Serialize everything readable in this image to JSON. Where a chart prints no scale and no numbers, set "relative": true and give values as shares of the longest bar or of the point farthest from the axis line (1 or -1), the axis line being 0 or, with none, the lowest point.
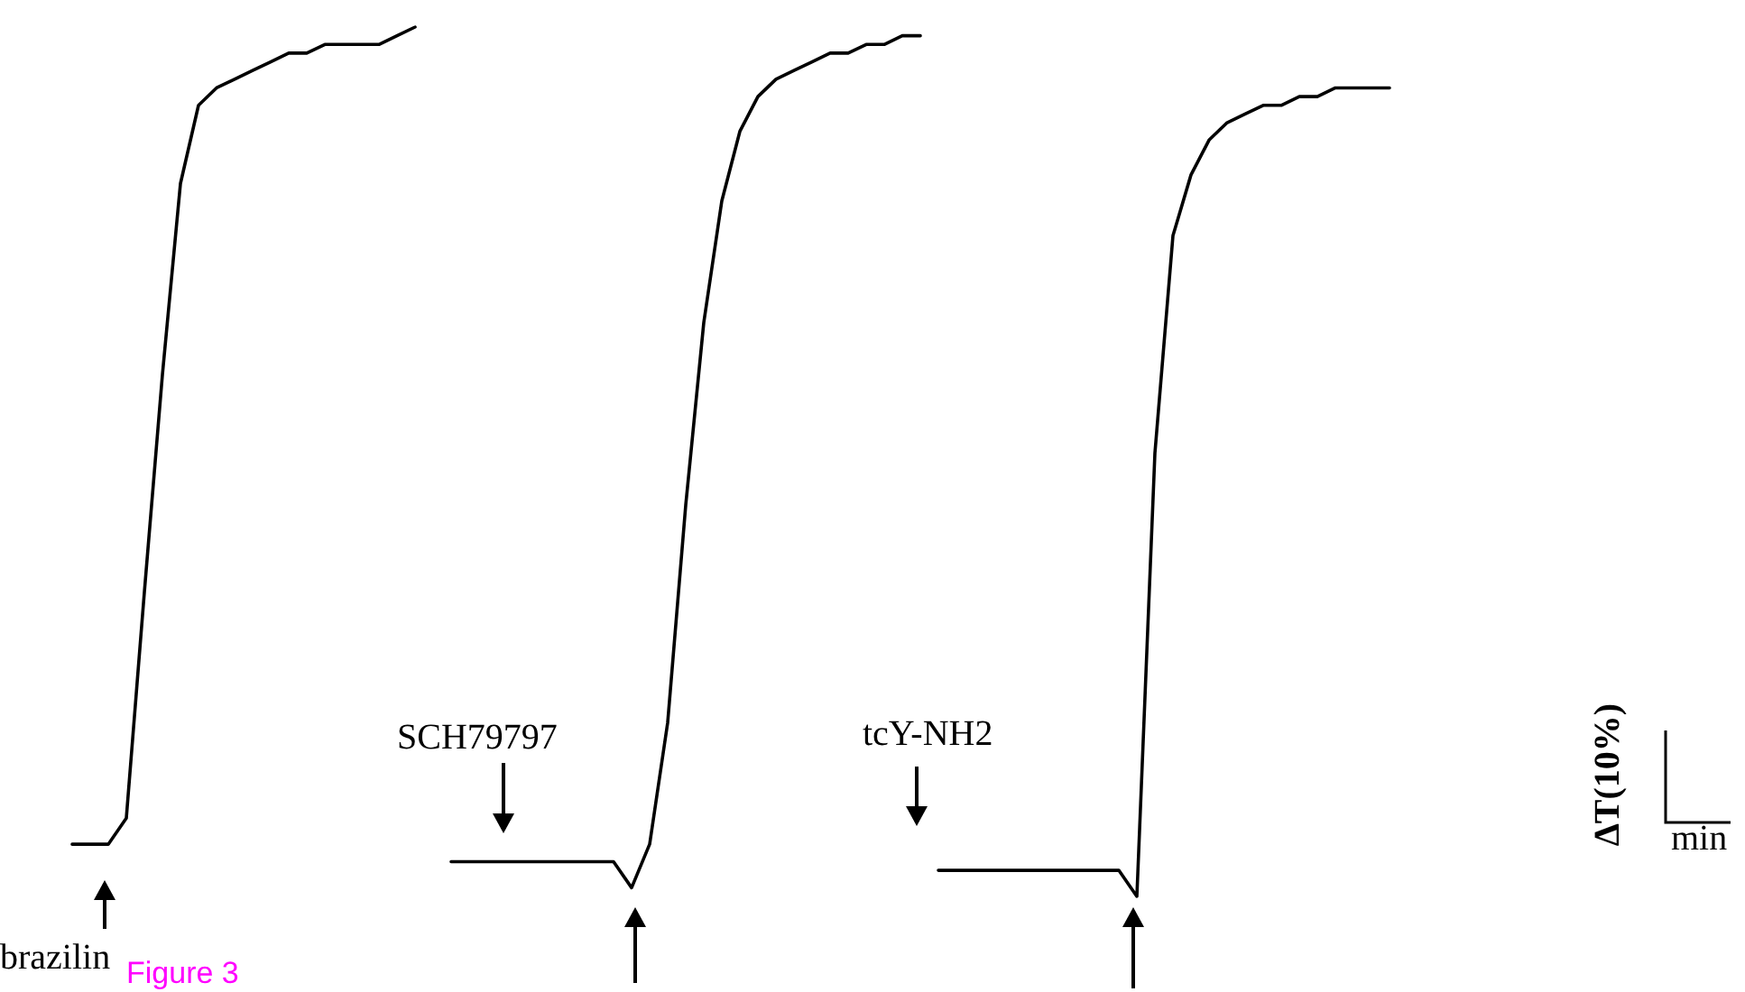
{
  "chart_data": {
    "type": "line",
    "relative": true,
    "marker": "none",
    "line_style": "solid",
    "categories": [
      null,
      null,
      null,
      null,
      null,
      null,
      null,
      null,
      null,
      null,
      null,
      null,
      null,
      null,
      null,
      null,
      null,
      null,
      null,
      null,
      null,
      null,
      null,
      null,
      null,
      null,
      null,
      null,
      null,
      null,
      null,
      null,
      null,
      null,
      null,
      null,
      null,
      null,
      null,
      null,
      null,
      null,
      null,
      null,
      null,
      null,
      null,
      null,
      null,
      null,
      null,
      null,
      null,
      null,
      null,
      null,
      null,
      null,
      null,
      null,
      null,
      null,
      null,
      null,
      null,
      null,
      null,
      null,
      null,
      null,
      null,
      null,
      null,
      null
    ],
    "series": [
      {
        "color": "#000000",
        "values": [
          0.06,
          0.06,
          0.06,
          0.09,
          0.35,
          0.6,
          0.82,
          0.91,
          0.93,
          0.94,
          0.95,
          0.96,
          0.97,
          0.97,
          0.98,
          0.98,
          0.98,
          0.98,
          0.99,
          1.0,
          null,
          null,
          null,
          null,
          null,
          null,
          null,
          null,
          null,
          null,
          null,
          null,
          null,
          null,
          null,
          null,
          null,
          null,
          null,
          null,
          null,
          null,
          null,
          null,
          null,
          null,
          null,
          null,
          null,
          null,
          null,
          null,
          null,
          null,
          null,
          null,
          null,
          null,
          null,
          null,
          null,
          null,
          null,
          null,
          null,
          null,
          null,
          null,
          null,
          null,
          null,
          null,
          null,
          null
        ]
      },
      {
        "color": "#000000",
        "values": [
          null,
          null,
          null,
          null,
          null,
          null,
          null,
          null,
          null,
          null,
          null,
          null,
          null,
          null,
          null,
          null,
          null,
          null,
          null,
          null,
          null,
          0.04,
          0.04,
          0.04,
          0.04,
          0.04,
          0.04,
          0.04,
          0.04,
          0.04,
          0.04,
          0.01,
          0.06,
          0.2,
          0.45,
          0.66,
          0.8,
          0.88,
          0.92,
          0.94,
          0.95,
          0.96,
          0.97,
          0.97,
          0.98,
          0.98,
          0.99,
          0.99,
          null,
          null,
          null,
          null,
          null,
          null,
          null,
          null,
          null,
          null,
          null,
          null,
          null,
          null,
          null,
          null,
          null,
          null,
          null,
          null,
          null,
          null,
          null,
          null,
          null,
          null
        ]
      },
      {
        "color": "#000000",
        "values": [
          null,
          null,
          null,
          null,
          null,
          null,
          null,
          null,
          null,
          null,
          null,
          null,
          null,
          null,
          null,
          null,
          null,
          null,
          null,
          null,
          null,
          null,
          null,
          null,
          null,
          null,
          null,
          null,
          null,
          null,
          null,
          null,
          null,
          null,
          null,
          null,
          null,
          null,
          null,
          null,
          null,
          null,
          null,
          null,
          null,
          null,
          null,
          null,
          0.03,
          0.03,
          0.03,
          0.03,
          0.03,
          0.03,
          0.03,
          0.03,
          0.03,
          0.03,
          0.03,
          0.0,
          0.51,
          0.76,
          0.83,
          0.87,
          0.89,
          0.9,
          0.91,
          0.91,
          0.92,
          0.92,
          0.93,
          0.93,
          0.93,
          0.93
        ]
      }
    ],
    "annotations": [
      "brazilin",
      "SCH79797",
      "tcY-NH2",
      "ΔT(10%)",
      "min",
      "Figure 3"
    ]
  }
}
